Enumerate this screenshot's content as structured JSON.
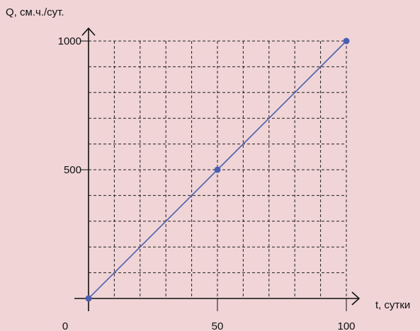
{
  "chart_data": {
    "type": "line",
    "xlabel": "t, сутки",
    "ylabel": "Q, см.ч./сут.",
    "xlim": [
      0,
      100
    ],
    "ylim": [
      0,
      1000
    ],
    "x_ticks": [
      {
        "value": 0,
        "label": "0"
      },
      {
        "value": 50,
        "label": "50"
      },
      {
        "value": 100,
        "label": "100"
      }
    ],
    "y_ticks": [
      {
        "value": 500,
        "label": "500"
      },
      {
        "value": 1000,
        "label": "1000"
      }
    ],
    "grid": true,
    "grid_divisions_x": 10,
    "grid_divisions_y": 10,
    "line_color": "#4a5fb0",
    "marker_color": "#4a5fb0",
    "series": [
      {
        "x": [
          0,
          50,
          100
        ],
        "y": [
          0,
          500,
          1000
        ]
      }
    ]
  }
}
